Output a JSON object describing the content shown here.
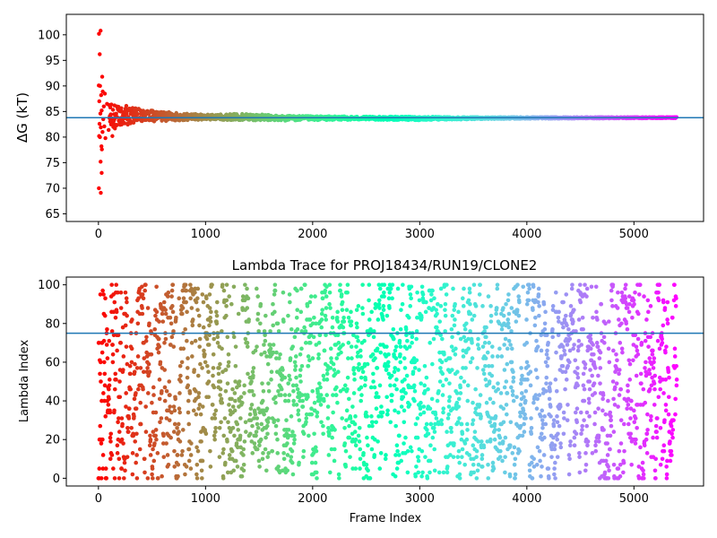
{
  "chart_data": [
    {
      "type": "scatter",
      "title": "",
      "xlabel": "",
      "ylabel": "ΔG (kT)",
      "xlim": [
        -300,
        5650
      ],
      "ylim": [
        63.5,
        104
      ],
      "x_ticks": [
        0,
        1000,
        2000,
        3000,
        4000,
        5000
      ],
      "y_ticks": [
        65,
        70,
        75,
        80,
        85,
        90,
        95,
        100
      ],
      "hline": 83.8,
      "colormap": "rainbow (red at frame 0 to violet at frame 5400)",
      "frame_range": [
        0,
        5400
      ],
      "series": [
        {
          "points": [
            [
              5,
              100.2
            ],
            [
              20,
              100.8
            ],
            [
              12,
              96.2
            ],
            [
              35,
              91.8
            ],
            [
              3,
              90.1
            ],
            [
              15,
              90.0
            ],
            [
              40,
              88.9
            ],
            [
              25,
              88.2
            ],
            [
              60,
              88.5
            ],
            [
              8,
              87.0
            ],
            [
              50,
              86.0
            ],
            [
              30,
              85.2
            ],
            [
              18,
              84.6
            ],
            [
              45,
              83.5
            ],
            [
              10,
              82.6
            ],
            [
              55,
              82.1
            ],
            [
              22,
              81.9
            ],
            [
              38,
              81.0
            ],
            [
              6,
              80.2
            ],
            [
              14,
              80.0
            ],
            [
              65,
              79.8
            ],
            [
              28,
              78.2
            ],
            [
              32,
              77.6
            ],
            [
              20,
              75.2
            ],
            [
              30,
              73.0
            ],
            [
              4,
              70.0
            ],
            [
              22,
              69.1
            ],
            [
              80,
              86.5
            ],
            [
              95,
              81.4
            ],
            [
              110,
              85.8
            ],
            [
              130,
              80.2
            ],
            [
              150,
              86.2
            ],
            [
              170,
              82.4
            ],
            [
              200,
              85.3
            ],
            [
              230,
              82.9
            ],
            [
              260,
              86.1
            ],
            [
              300,
              82.7
            ],
            [
              350,
              85.4
            ],
            [
              400,
              83.2
            ],
            [
              450,
              85.0
            ],
            [
              500,
              83.3
            ],
            [
              600,
              84.8
            ],
            [
              700,
              83.4
            ],
            [
              800,
              84.5
            ],
            [
              900,
              83.5
            ]
          ],
          "band": {
            "frames": [
              100,
              200,
              300,
              500,
              700,
              1000,
              1400,
              1700,
              2000,
              2500,
              3000,
              3500,
              4000,
              5400
            ],
            "lower": [
              80.8,
              82.0,
              82.6,
              83.0,
              83.2,
              83.4,
              83.3,
              83.2,
              83.3,
              83.4,
              83.3,
              83.5,
              83.6,
              83.7
            ],
            "upper": [
              86.6,
              86.0,
              85.8,
              85.2,
              84.8,
              84.4,
              84.6,
              84.2,
              84.1,
              84.0,
              84.0,
              83.9,
              83.9,
              83.9
            ]
          }
        }
      ]
    },
    {
      "type": "scatter",
      "title": "Lambda Trace for PROJ18434/RUN19/CLONE2",
      "xlabel": "Frame Index",
      "ylabel": "Lambda Index",
      "xlim": [
        -300,
        5650
      ],
      "ylim": [
        -4,
        104
      ],
      "x_ticks": [
        0,
        1000,
        2000,
        3000,
        4000,
        5000
      ],
      "y_ticks": [
        0,
        20,
        40,
        60,
        80,
        100
      ],
      "hline": 75,
      "colormap": "rainbow (red at frame 0 to violet at frame 5400)",
      "frame_range": [
        0,
        5400
      ],
      "series": [
        {
          "sampling": "about 2700 frames drawn from 0 to 5400, lambda index 0 to 100 varying step to step",
          "n_points": 2700,
          "x_range": [
            0,
            5400
          ],
          "y_range": [
            0,
            100
          ]
        }
      ]
    }
  ],
  "colors": {
    "hline": "#1f77b4",
    "axes": "#000000",
    "background": "#ffffff"
  }
}
